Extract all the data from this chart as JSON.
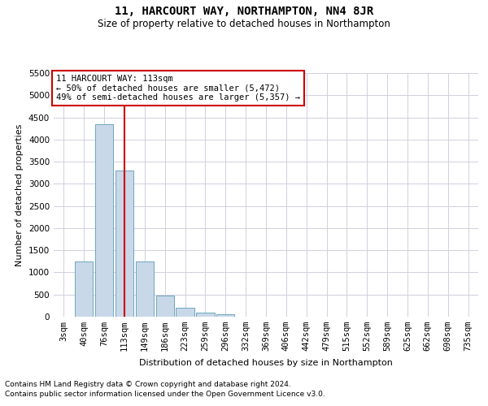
{
  "title": "11, HARCOURT WAY, NORTHAMPTON, NN4 8JR",
  "subtitle": "Size of property relative to detached houses in Northampton",
  "xlabel": "Distribution of detached houses by size in Northampton",
  "ylabel": "Number of detached properties",
  "footnote1": "Contains HM Land Registry data © Crown copyright and database right 2024.",
  "footnote2": "Contains public sector information licensed under the Open Government Licence v3.0.",
  "annotation_line1": "11 HARCOURT WAY: 113sqm",
  "annotation_line2": "← 50% of detached houses are smaller (5,472)",
  "annotation_line3": "49% of semi-detached houses are larger (5,357) →",
  "categories": [
    "3sqm",
    "40sqm",
    "76sqm",
    "113sqm",
    "149sqm",
    "186sqm",
    "223sqm",
    "259sqm",
    "296sqm",
    "332sqm",
    "369sqm",
    "406sqm",
    "442sqm",
    "479sqm",
    "515sqm",
    "552sqm",
    "589sqm",
    "625sqm",
    "662sqm",
    "698sqm",
    "735sqm"
  ],
  "bar_values": [
    0,
    1250,
    4350,
    3300,
    1250,
    475,
    200,
    100,
    60,
    0,
    0,
    0,
    0,
    0,
    0,
    0,
    0,
    0,
    0,
    0,
    0
  ],
  "bar_color": "#c8d8e8",
  "bar_edge_color": "#5a9ab5",
  "red_line_x": 3,
  "red_line_color": "#cc0000",
  "ylim": [
    0,
    5500
  ],
  "yticks": [
    0,
    500,
    1000,
    1500,
    2000,
    2500,
    3000,
    3500,
    4000,
    4500,
    5000,
    5500
  ],
  "bg_color": "#ffffff",
  "grid_color": "#d0d0e0",
  "annotation_box_color": "#cc0000",
  "title_fontsize": 10,
  "subtitle_fontsize": 8.5,
  "axis_label_fontsize": 8,
  "tick_fontsize": 7.5,
  "footnote_fontsize": 6.5,
  "annotation_fontsize": 7.5
}
